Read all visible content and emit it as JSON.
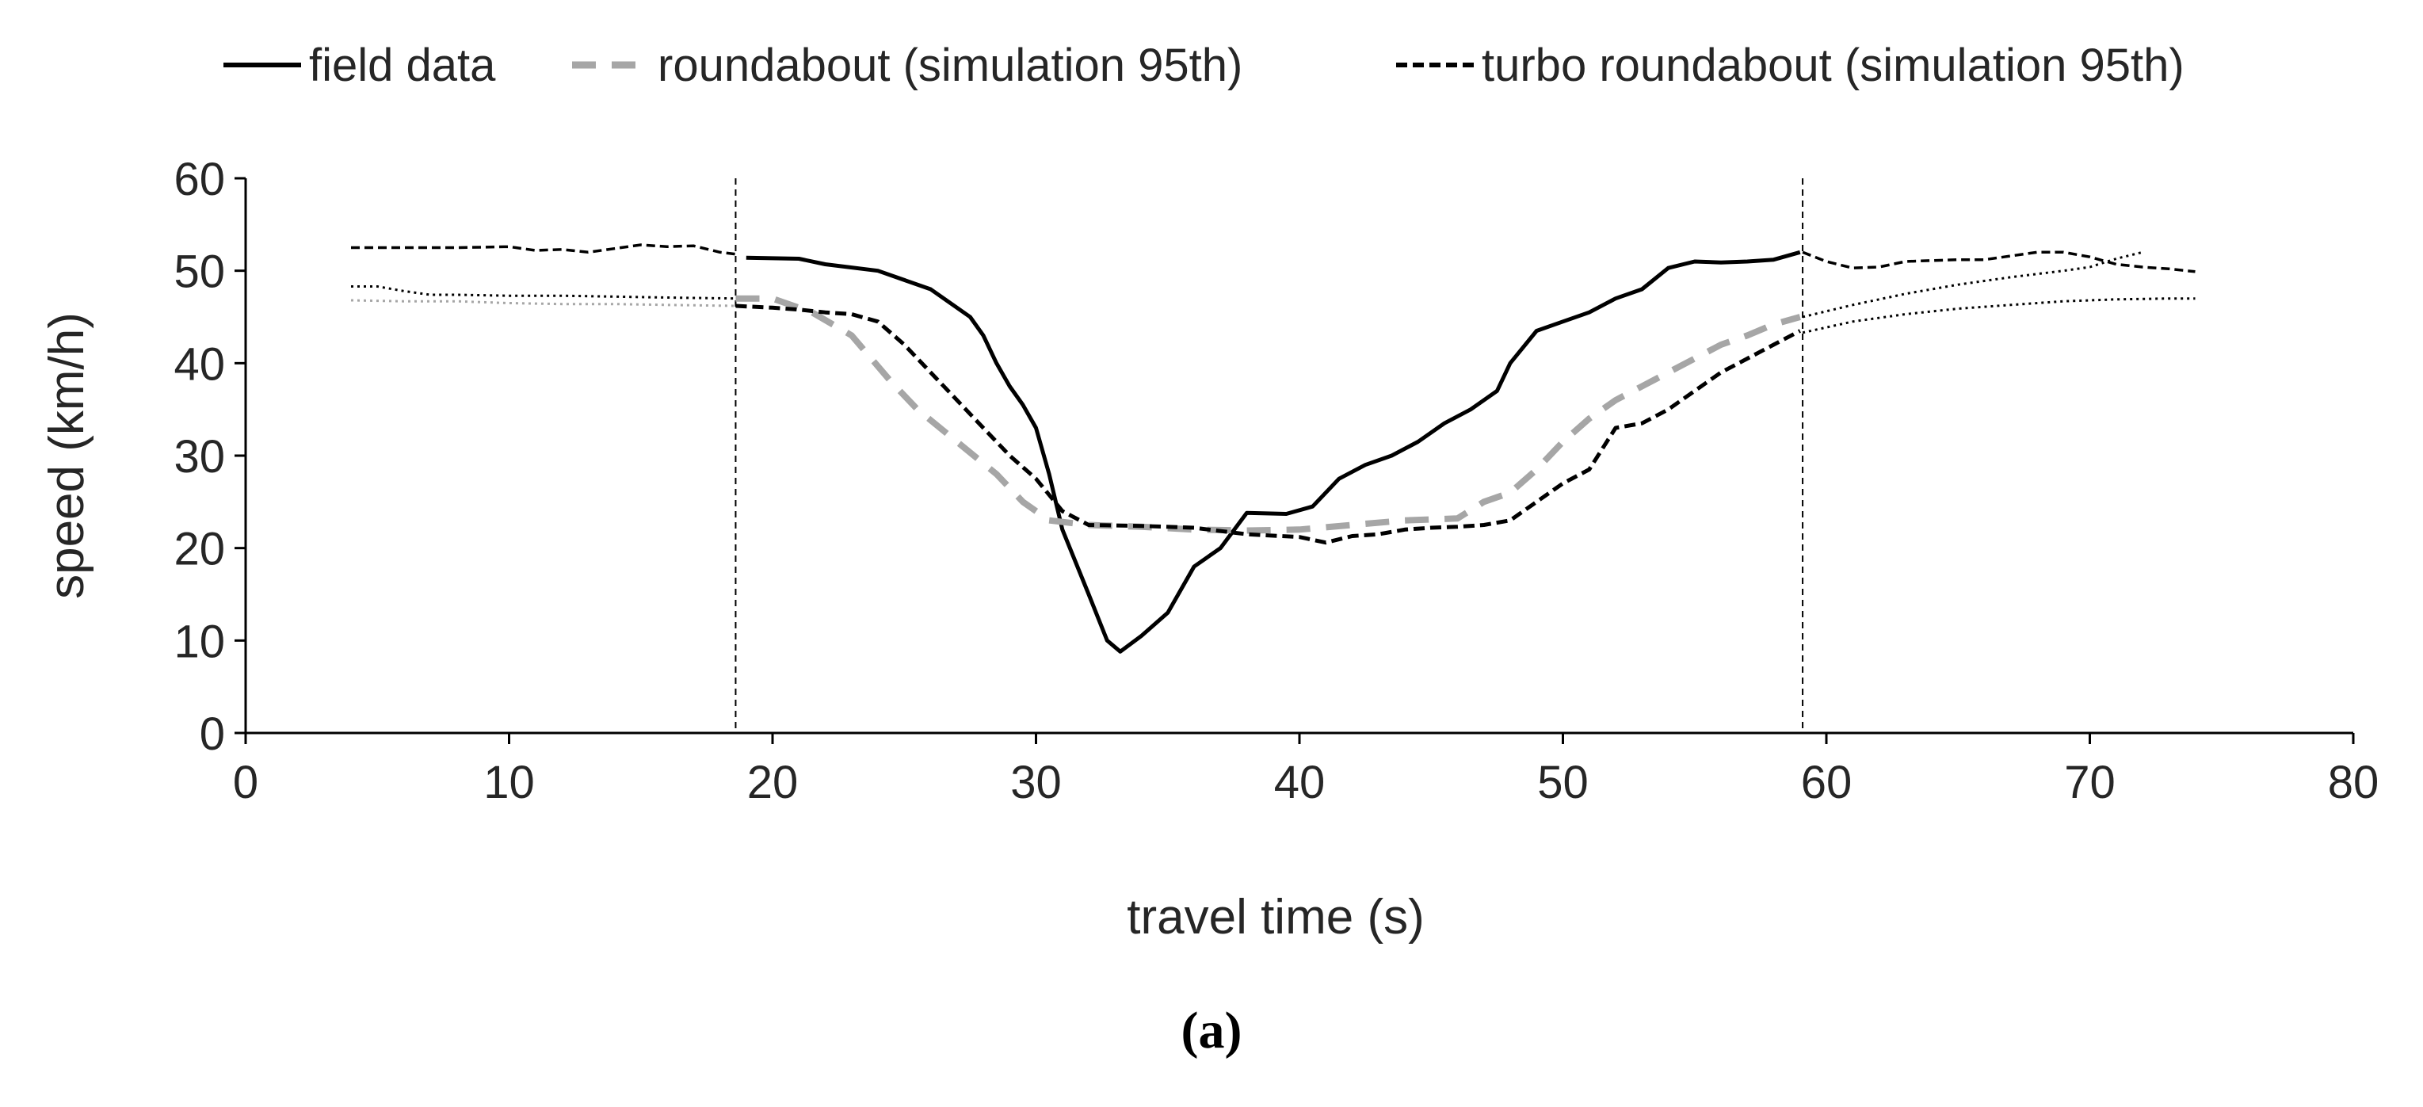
{
  "chart_data": {
    "type": "line",
    "title": "",
    "caption": "(a)",
    "xlabel": "travel time (s)",
    "ylabel": "speed (km/h)",
    "xlim": [
      0,
      80
    ],
    "ylim": [
      0,
      60
    ],
    "xticks": [
      0,
      10,
      20,
      30,
      40,
      50,
      60,
      70,
      80
    ],
    "yticks": [
      0,
      10,
      20,
      30,
      40,
      50,
      60
    ],
    "grid": false,
    "legend_position": "top",
    "reference_lines": [
      {
        "axis": "x",
        "value": 18.6,
        "style": "dashed"
      },
      {
        "axis": "x",
        "value": 59.1,
        "style": "dashed"
      }
    ],
    "series": [
      {
        "name": "field data",
        "style": "solid",
        "color": "#000000",
        "points": [
          [
            19,
            51.4
          ],
          [
            21,
            51.3
          ],
          [
            22,
            50.7
          ],
          [
            24,
            50
          ],
          [
            26,
            48
          ],
          [
            27.5,
            45
          ],
          [
            28,
            43
          ],
          [
            28.5,
            40
          ],
          [
            29,
            37.5
          ],
          [
            29.5,
            35.5
          ],
          [
            30,
            33
          ],
          [
            30.5,
            28
          ],
          [
            31,
            22
          ],
          [
            32,
            15
          ],
          [
            32.7,
            10
          ],
          [
            33.2,
            8.8
          ],
          [
            34,
            10.5
          ],
          [
            35,
            13
          ],
          [
            36,
            18
          ],
          [
            37,
            20
          ],
          [
            38,
            23.8
          ],
          [
            39.5,
            23.7
          ],
          [
            40.5,
            24.5
          ],
          [
            41.5,
            27.5
          ],
          [
            42.5,
            29
          ],
          [
            43.5,
            30
          ],
          [
            44.5,
            31.5
          ],
          [
            45.5,
            33.5
          ],
          [
            46.5,
            35
          ],
          [
            47.5,
            37
          ],
          [
            48,
            40
          ],
          [
            49,
            43.5
          ],
          [
            50,
            44.5
          ],
          [
            51,
            45.5
          ],
          [
            52,
            47
          ],
          [
            53,
            48
          ],
          [
            54,
            50.3
          ],
          [
            55,
            51
          ],
          [
            56,
            50.9
          ],
          [
            57,
            51
          ],
          [
            58,
            51.2
          ],
          [
            59,
            52
          ]
        ]
      },
      {
        "name": "roundabout (simulation 95th)",
        "style": "dashed",
        "color": "#a6a6a6",
        "points": [
          [
            18.6,
            47
          ],
          [
            20,
            47
          ],
          [
            21.5,
            45.5
          ],
          [
            23,
            43
          ],
          [
            24.5,
            38
          ],
          [
            25.5,
            35
          ],
          [
            27,
            31.5
          ],
          [
            28.5,
            28
          ],
          [
            29.5,
            25
          ],
          [
            30.5,
            23
          ],
          [
            32,
            22.5
          ],
          [
            34,
            22.3
          ],
          [
            36,
            22
          ],
          [
            38,
            21.9
          ],
          [
            40,
            22
          ],
          [
            42,
            22.5
          ],
          [
            44,
            23
          ],
          [
            46,
            23.2
          ],
          [
            47,
            25
          ],
          [
            48,
            26
          ],
          [
            49,
            28.5
          ],
          [
            50,
            31.5
          ],
          [
            51,
            34
          ],
          [
            52,
            36
          ],
          [
            53,
            37.5
          ],
          [
            54,
            39
          ],
          [
            55,
            40.5
          ],
          [
            56,
            42
          ],
          [
            57,
            43
          ],
          [
            58,
            44.2
          ],
          [
            59,
            45
          ]
        ]
      },
      {
        "name": "turbo roundabout (simulation 95th)",
        "style": "dashed",
        "color": "#000000",
        "points": [
          [
            18.6,
            46.2
          ],
          [
            20,
            46
          ],
          [
            21,
            45.8
          ],
          [
            22,
            45.5
          ],
          [
            23,
            45.3
          ],
          [
            24,
            44.5
          ],
          [
            25,
            42
          ],
          [
            26,
            39
          ],
          [
            27,
            36
          ],
          [
            28,
            33
          ],
          [
            29,
            30
          ],
          [
            30,
            27.5
          ],
          [
            31,
            24
          ],
          [
            32,
            22.5
          ],
          [
            34,
            22.4
          ],
          [
            36,
            22.2
          ],
          [
            38,
            21.5
          ],
          [
            40,
            21.2
          ],
          [
            41,
            20.6
          ],
          [
            42,
            21.3
          ],
          [
            43,
            21.5
          ],
          [
            44,
            22
          ],
          [
            45,
            22.2
          ],
          [
            46,
            22.3
          ],
          [
            47,
            22.5
          ],
          [
            48,
            23
          ],
          [
            49,
            25
          ],
          [
            50,
            27
          ],
          [
            51,
            28.5
          ],
          [
            52,
            33
          ],
          [
            53,
            33.5
          ],
          [
            54,
            35
          ],
          [
            55,
            37
          ],
          [
            56,
            39
          ],
          [
            57,
            40.5
          ],
          [
            58,
            42
          ],
          [
            59,
            43.5
          ]
        ]
      },
      {
        "name": "",
        "style": "dashed-thin",
        "color": "#000000",
        "points": [
          [
            4,
            52.5
          ],
          [
            6,
            52.5
          ],
          [
            8,
            52.5
          ],
          [
            10,
            52.6
          ],
          [
            11,
            52.2
          ],
          [
            12,
            52.3
          ],
          [
            13,
            52
          ],
          [
            14,
            52.4
          ],
          [
            15,
            52.8
          ],
          [
            16,
            52.6
          ],
          [
            17,
            52.7
          ],
          [
            18,
            52
          ],
          [
            18.6,
            51.8
          ]
        ]
      },
      {
        "name": "",
        "style": "dotted",
        "color": "#000000",
        "points": [
          [
            4,
            48.3
          ],
          [
            5,
            48.3
          ],
          [
            6,
            47.8
          ],
          [
            7,
            47.4
          ],
          [
            8,
            47.4
          ],
          [
            10,
            47.3
          ],
          [
            12,
            47.3
          ],
          [
            14,
            47.2
          ],
          [
            16,
            47.1
          ],
          [
            18.6,
            47
          ]
        ]
      },
      {
        "name": "",
        "style": "dotted",
        "color": "#a6a6a6",
        "points": [
          [
            4,
            46.8
          ],
          [
            6,
            46.7
          ],
          [
            8,
            46.7
          ],
          [
            10,
            46.5
          ],
          [
            12,
            46.4
          ],
          [
            14,
            46.4
          ],
          [
            16,
            46.3
          ],
          [
            18.6,
            46.2
          ]
        ]
      },
      {
        "name": "",
        "style": "dashed-thin",
        "color": "#000000",
        "points": [
          [
            59.1,
            52
          ],
          [
            60,
            51
          ],
          [
            61,
            50.3
          ],
          [
            62,
            50.4
          ],
          [
            63,
            51
          ],
          [
            64,
            51.1
          ],
          [
            65,
            51.2
          ],
          [
            66,
            51.2
          ],
          [
            67,
            51.6
          ],
          [
            68,
            52
          ],
          [
            69,
            52
          ],
          [
            70,
            51.5
          ],
          [
            71,
            50.7
          ],
          [
            72,
            50.4
          ],
          [
            73,
            50.2
          ],
          [
            74,
            49.9
          ]
        ]
      },
      {
        "name": "",
        "style": "dotted",
        "color": "#000000",
        "points": [
          [
            59.1,
            45
          ],
          [
            61,
            46.3
          ],
          [
            63,
            47.5
          ],
          [
            65,
            48.5
          ],
          [
            67,
            49.3
          ],
          [
            69,
            50
          ],
          [
            70,
            50.4
          ],
          [
            71,
            51.3
          ],
          [
            72,
            52
          ]
        ]
      },
      {
        "name": "",
        "style": "dotted",
        "color": "#000000",
        "points": [
          [
            59.1,
            43.3
          ],
          [
            61,
            44.5
          ],
          [
            63,
            45.3
          ],
          [
            65,
            45.9
          ],
          [
            67,
            46.3
          ],
          [
            69,
            46.7
          ],
          [
            71,
            46.9
          ],
          [
            73,
            47
          ],
          [
            74,
            47
          ]
        ]
      }
    ]
  }
}
